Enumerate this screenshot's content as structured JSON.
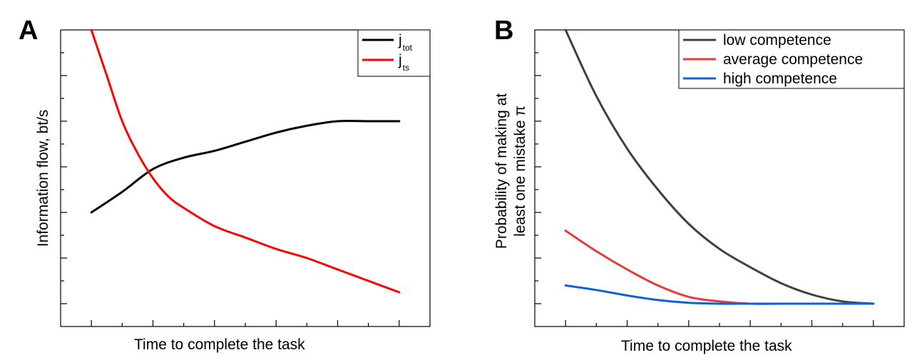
{
  "chart_data": [
    {
      "panel_label": "A",
      "type": "line",
      "title": "",
      "xlabel": "Time to complete the task",
      "ylabel": "Information flow, bt/s",
      "xlim": [
        -0.5,
        5.5
      ],
      "ylim": [
        -0.5,
        6.0
      ],
      "x_ticks": 5,
      "y_ticks": 7,
      "grid": false,
      "legend_position": "top-right",
      "series": [
        {
          "name": "j",
          "subscript": "tot",
          "color": "#000000",
          "x": [
            0,
            0.5,
            1,
            1.5,
            2,
            2.5,
            3,
            3.5,
            4,
            4.5,
            5
          ],
          "y": [
            2.0,
            2.45,
            2.95,
            3.2,
            3.35,
            3.55,
            3.75,
            3.9,
            4.0,
            4.0,
            4.0
          ]
        },
        {
          "name": "j",
          "subscript": "ts",
          "color": "#ff0000",
          "x": [
            0,
            0.25,
            0.5,
            0.75,
            1,
            1.25,
            1.5,
            2,
            2.5,
            3,
            3.5,
            4,
            4.5,
            5
          ],
          "y": [
            6.0,
            5.0,
            4.0,
            3.3,
            2.75,
            2.35,
            2.1,
            1.7,
            1.45,
            1.2,
            1.0,
            0.75,
            0.5,
            0.25
          ]
        }
      ]
    },
    {
      "panel_label": "B",
      "type": "line",
      "title": "",
      "xlabel": "Time to complete the task",
      "ylabel_lines": [
        "Probability of making at",
        "least one mistake π"
      ],
      "xlim": [
        -0.5,
        5.5
      ],
      "ylim": [
        -0.5,
        6.0
      ],
      "x_ticks": 5,
      "y_ticks": 7,
      "grid": false,
      "legend_position": "top-right",
      "series": [
        {
          "name": "low competence",
          "color": "#404040",
          "x": [
            0,
            0.5,
            1,
            1.5,
            2,
            2.5,
            3,
            3.5,
            4,
            4.5,
            5
          ],
          "y": [
            6.0,
            4.55,
            3.4,
            2.5,
            1.75,
            1.2,
            0.8,
            0.45,
            0.2,
            0.05,
            0.0
          ]
        },
        {
          "name": "average competence",
          "color": "#e83a3a",
          "x": [
            0,
            0.5,
            1,
            1.5,
            2,
            2.5,
            3,
            3.5,
            4,
            4.5,
            5
          ],
          "y": [
            1.6,
            1.15,
            0.75,
            0.4,
            0.15,
            0.05,
            0.0,
            0.0,
            0.0,
            0.0,
            0.0
          ]
        },
        {
          "name": "high competence",
          "color": "#1060d8",
          "x": [
            0,
            0.5,
            1,
            1.5,
            2,
            2.5,
            3,
            3.5,
            4,
            4.5,
            5
          ],
          "y": [
            0.4,
            0.3,
            0.18,
            0.08,
            0.02,
            0.0,
            0.0,
            0.0,
            0.0,
            0.0,
            0.0
          ]
        }
      ]
    }
  ]
}
